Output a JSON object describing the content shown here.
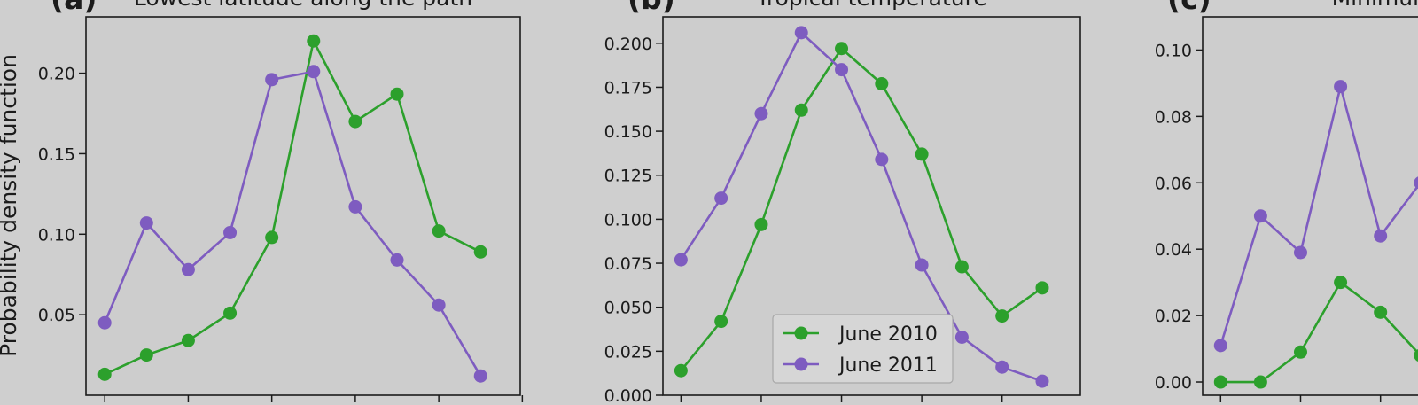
{
  "ylabel": "Probability density function",
  "colors": {
    "june_2010": "#2ca02c",
    "june_2011": "#7e5cc0"
  },
  "chart_data": [
    {
      "type": "line",
      "panel_letter": "(a)",
      "title": "Lowest latitude along the path",
      "ylim": [
        0.0,
        0.235
      ],
      "yticks": [
        0.05,
        0.1,
        0.15,
        0.2
      ],
      "ytick_labels": [
        "0.05",
        "0.10",
        "0.15",
        "0.20"
      ],
      "x": [
        1,
        2,
        3,
        4,
        5,
        6,
        7,
        8,
        9,
        10
      ],
      "xlim": [
        0.55,
        10.95
      ],
      "xticks": [
        1,
        3,
        5,
        7,
        9,
        11
      ],
      "series": [
        {
          "name": "June 2010",
          "color": "#2ca02c",
          "values": [
            0.013,
            0.025,
            0.034,
            0.051,
            0.098,
            0.22,
            0.17,
            0.187,
            0.102,
            0.089
          ]
        },
        {
          "name": "June 2011",
          "color": "#7e5cc0",
          "values": [
            0.045,
            0.107,
            0.078,
            0.101,
            0.196,
            0.201,
            0.117,
            0.084,
            0.056,
            0.012
          ]
        }
      ]
    },
    {
      "type": "line",
      "panel_letter": "(b)",
      "title": "Tropical temperature",
      "ylim": [
        0.0,
        0.215
      ],
      "yticks": [
        0.0,
        0.025,
        0.05,
        0.075,
        0.1,
        0.125,
        0.15,
        0.175,
        0.2
      ],
      "ytick_labels": [
        "0.000",
        "0.025",
        "0.050",
        "0.075",
        "0.100",
        "0.125",
        "0.150",
        "0.175",
        "0.200"
      ],
      "x": [
        1,
        2,
        3,
        4,
        5,
        6,
        7,
        8,
        9,
        10
      ],
      "xlim": [
        0.55,
        10.95
      ],
      "xticks": [
        1,
        3,
        5,
        7,
        9
      ],
      "legend": {
        "position": "lower-center",
        "entries": [
          "June 2010",
          "June 2011"
        ]
      },
      "series": [
        {
          "name": "June 2010",
          "color": "#2ca02c",
          "values": [
            0.014,
            0.042,
            0.097,
            0.162,
            0.197,
            0.177,
            0.137,
            0.073,
            0.045,
            0.061
          ]
        },
        {
          "name": "June 2011",
          "color": "#7e5cc0",
          "values": [
            0.077,
            0.112,
            0.16,
            0.206,
            0.185,
            0.134,
            0.074,
            0.033,
            0.016,
            0.008
          ]
        }
      ]
    },
    {
      "type": "line",
      "panel_letter": "(c)",
      "title": "Minimum satu",
      "ylim": [
        -0.004,
        0.11
      ],
      "yticks": [
        0.0,
        0.02,
        0.04,
        0.06,
        0.08,
        0.1
      ],
      "ytick_labels": [
        "0.00",
        "0.02",
        "0.04",
        "0.06",
        "0.08",
        "0.10"
      ],
      "x": [
        1,
        2,
        3,
        4,
        5,
        6
      ],
      "xlim": [
        0.55,
        10.95
      ],
      "xticks": [
        1,
        3,
        5
      ],
      "series": [
        {
          "name": "June 2010",
          "color": "#2ca02c",
          "values": [
            0.0,
            0.0,
            0.009,
            0.03,
            0.021,
            0.008
          ]
        },
        {
          "name": "June 2011",
          "color": "#7e5cc0",
          "values": [
            0.011,
            0.05,
            0.039,
            0.089,
            0.044,
            0.06
          ]
        }
      ]
    }
  ]
}
